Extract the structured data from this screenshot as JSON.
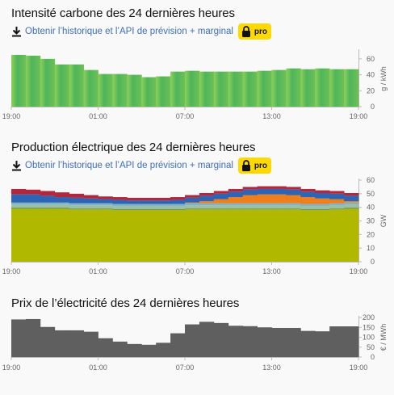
{
  "link_text": "Obtenir l’historique et l’API de prévision + marginal",
  "pro_label": "pro",
  "icons": {
    "download": "download-icon",
    "lock": "lock-icon"
  },
  "chart_data": [
    {
      "type": "area",
      "title": "Intensité carbone des 24 dernières heures",
      "ylabel": "g / kWh",
      "xticks": [
        "19:00",
        "01:00",
        "07:00",
        "13:00",
        "19:00"
      ],
      "yticks": [
        0,
        20,
        40,
        60
      ],
      "ylim": [
        0,
        70
      ],
      "x": [
        "19:00",
        "20:00",
        "21:00",
        "22:00",
        "23:00",
        "00:00",
        "01:00",
        "02:00",
        "03:00",
        "04:00",
        "05:00",
        "06:00",
        "07:00",
        "08:00",
        "09:00",
        "10:00",
        "11:00",
        "12:00",
        "13:00",
        "14:00",
        "15:00",
        "16:00",
        "17:00",
        "18:00"
      ],
      "values": [
        65,
        64,
        60,
        53,
        53,
        46,
        41,
        41,
        40,
        37,
        38,
        44,
        45,
        44,
        44,
        44,
        44,
        45,
        46,
        48,
        47,
        48,
        47,
        47
      ],
      "colors": {
        "start": "#8fd05a",
        "middle": "#4eb55a",
        "end": "#6fc056"
      }
    },
    {
      "type": "area",
      "stacked": true,
      "title": "Production électrique des 24 dernières heures",
      "ylabel": "GW",
      "xticks": [
        "19:00",
        "01:00",
        "07:00",
        "13:00",
        "19:00"
      ],
      "yticks": [
        0,
        10,
        20,
        30,
        40,
        50,
        60
      ],
      "ylim": [
        0,
        60
      ],
      "x": [
        "19:00",
        "20:00",
        "21:00",
        "22:00",
        "23:00",
        "00:00",
        "01:00",
        "02:00",
        "03:00",
        "04:00",
        "05:00",
        "06:00",
        "07:00",
        "08:00",
        "09:00",
        "10:00",
        "11:00",
        "12:00",
        "13:00",
        "14:00",
        "15:00",
        "16:00",
        "17:00",
        "18:00"
      ],
      "series": [
        {
          "color": "#b1b800",
          "values": [
            39,
            39,
            39,
            39,
            38.5,
            38.5,
            38.5,
            38,
            38,
            38,
            38,
            38,
            38.5,
            38.5,
            38.5,
            38.5,
            38.5,
            38.5,
            38.5,
            38.5,
            38,
            38,
            38.5,
            39
          ]
        },
        {
          "color": "#4a7a3a",
          "values": [
            0.5,
            0.5,
            0.5,
            0.5,
            0.5,
            0.5,
            0.5,
            0.5,
            0.5,
            0.5,
            0.5,
            0.5,
            0.5,
            0.5,
            0.5,
            0.5,
            0.5,
            0.5,
            0.5,
            0.5,
            0.5,
            0.5,
            0.5,
            0.5
          ]
        },
        {
          "color": "#9bbfa0",
          "values": [
            2.5,
            2.5,
            2.5,
            2.5,
            2.5,
            2.5,
            2.5,
            2.5,
            2.5,
            2.5,
            2.5,
            2.5,
            2.5,
            2.5,
            2.5,
            2.5,
            2.5,
            2.5,
            2.5,
            2.5,
            2.5,
            2.5,
            2.5,
            2.5
          ]
        },
        {
          "color": "#7fb3c9",
          "values": [
            1.5,
            1.5,
            1.5,
            1.5,
            1.5,
            1.5,
            1.5,
            1.5,
            1.5,
            1.5,
            1.5,
            1.5,
            1.5,
            1.5,
            1.5,
            1.5,
            1.5,
            1.5,
            1.5,
            1.5,
            1.5,
            1.5,
            1.5,
            1.5
          ]
        },
        {
          "color": "#ee7f1a",
          "values": [
            0,
            0,
            0,
            0,
            0,
            0,
            0,
            0,
            0,
            0,
            0,
            0,
            0.5,
            1.5,
            3,
            4.5,
            6,
            6.5,
            6.5,
            6,
            5,
            4,
            3,
            1
          ]
        },
        {
          "color": "#2d64b3",
          "values": [
            6,
            6,
            5,
            4,
            4,
            3.5,
            3,
            3,
            2.5,
            2.5,
            2.5,
            3,
            3.5,
            4,
            4,
            4,
            4,
            4,
            4,
            4,
            4,
            4,
            4,
            4
          ]
        },
        {
          "color": "#b0283d",
          "values": [
            4,
            3.5,
            3.5,
            3.5,
            3,
            2.5,
            2,
            2,
            2,
            2,
            2,
            2,
            2,
            2,
            2,
            2,
            2,
            2,
            2,
            2,
            2,
            2,
            2,
            2
          ]
        }
      ]
    },
    {
      "type": "area",
      "title": "Prix de l’électricité des 24 dernières heures",
      "ylabel": "€ / MWh",
      "xticks": [
        "19:00",
        "01:00",
        "07:00",
        "13:00",
        "19:00"
      ],
      "yticks": [
        0,
        50,
        100,
        150,
        200
      ],
      "ylim": [
        0,
        200
      ],
      "x": [
        "19:00",
        "20:00",
        "21:00",
        "22:00",
        "23:00",
        "00:00",
        "01:00",
        "02:00",
        "03:00",
        "04:00",
        "05:00",
        "06:00",
        "07:00",
        "08:00",
        "09:00",
        "10:00",
        "11:00",
        "12:00",
        "13:00",
        "14:00",
        "15:00",
        "16:00",
        "17:00",
        "18:00"
      ],
      "values": [
        190,
        192,
        152,
        135,
        135,
        128,
        95,
        78,
        66,
        62,
        72,
        120,
        165,
        178,
        172,
        158,
        156,
        150,
        147,
        147,
        132,
        130,
        155,
        155
      ],
      "colors": {
        "fill": "#5f5f5f"
      }
    }
  ]
}
